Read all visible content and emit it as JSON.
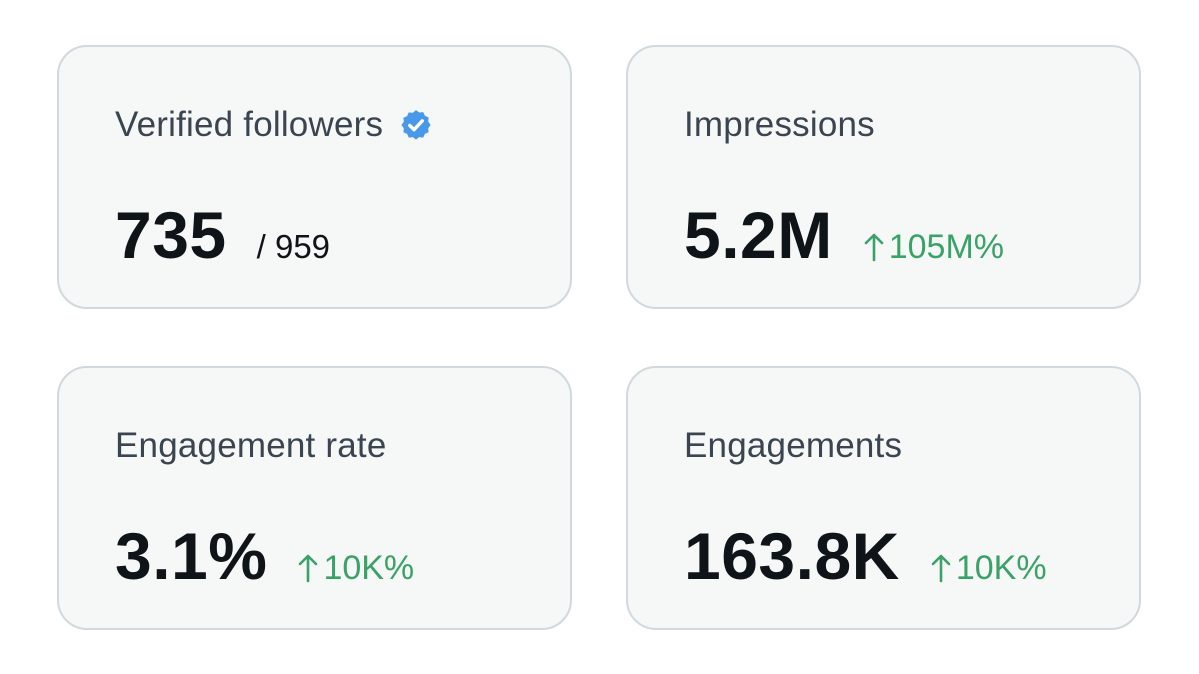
{
  "cards": [
    {
      "title": "Verified followers",
      "value": "735",
      "total": "/ 959",
      "icon": "verified-badge-icon"
    },
    {
      "title": "Impressions",
      "value": "5.2M",
      "delta": "105M%",
      "icon": "arrow-up-icon"
    },
    {
      "title": "Engagement rate",
      "value": "3.1%",
      "delta": "10K%",
      "icon": "arrow-up-icon"
    },
    {
      "title": "Engagements",
      "value": "163.8K",
      "delta": "10K%",
      "icon": "arrow-up-icon"
    }
  ],
  "colors": {
    "card_bg": "#f6f7f7",
    "card_border": "#cfd9de",
    "title": "#3b4550",
    "value": "#0f1419",
    "positive": "#3aa268",
    "verified": "#1d9bf0"
  }
}
